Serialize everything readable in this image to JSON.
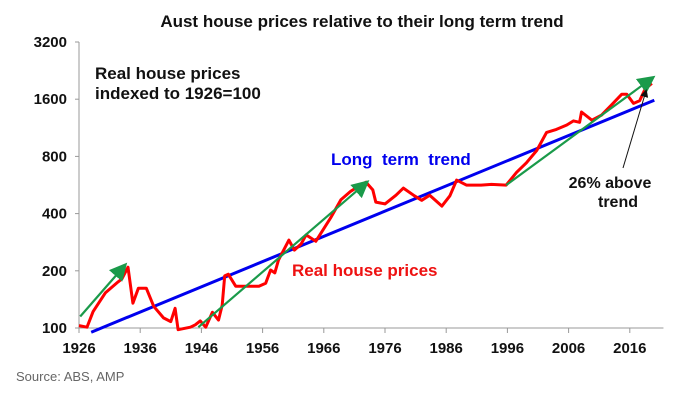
{
  "chart_data": {
    "type": "line",
    "title": "Aust house prices relative to their long term trend",
    "y_scale": "log2",
    "ylim": [
      100,
      3200
    ],
    "y_ticks": [
      "100",
      "200",
      "400",
      "800",
      "1600",
      "3200"
    ],
    "xlim": [
      1926,
      2021
    ],
    "x_ticks": [
      "1926",
      "1936",
      "1946",
      "1956",
      "1966",
      "1976",
      "1986",
      "1996",
      "2006",
      "2016"
    ],
    "grid": false,
    "annotations": {
      "index_note_line1": "Real house prices",
      "index_note_line2": "indexed to 1926=100",
      "trend_label": "Long  term  trend",
      "real_label": "Real house prices",
      "above_line1": "26% above",
      "above_line2": "trend"
    },
    "series": [
      {
        "name": "Real house prices",
        "color": "#ff0000",
        "x": [
          1926,
          1927.3,
          1928.3,
          1930.3,
          1932.4,
          1933,
          1934,
          1934.8,
          1935.7,
          1937,
          1938.2,
          1939.8,
          1941,
          1941.7,
          1942.2,
          1944.2,
          1945,
          1945.8,
          1946.7,
          1947.8,
          1948.8,
          1949.4,
          1949.8,
          1950.4,
          1951.6,
          1955.4,
          1956.5,
          1957.3,
          1958,
          1958.6,
          1960.3,
          1961.2,
          1962.3,
          1963.1,
          1964.7,
          1967.1,
          1968.8,
          1970.4,
          1972,
          1972.9,
          1974,
          1974.5,
          1976,
          1977.8,
          1979,
          1980.8,
          1982,
          1983.3,
          1985.3,
          1986.6,
          1987.7,
          1989.3,
          1991.7,
          1993.4,
          1995.8,
          1997.5,
          1999.1,
          2000.8,
          2002.4,
          2004,
          2005.7,
          2006.8,
          2007.8,
          2008.1,
          2009.8,
          2011.4,
          2013,
          2014.7,
          2015.5,
          2016.6,
          2017.6,
          2018.5,
          2019.6
        ],
        "y": [
          103,
          101,
          122,
          153,
          175,
          181,
          209,
          135,
          162,
          162,
          130,
          113,
          108,
          127,
          98,
          101,
          104,
          109,
          101,
          121,
          110,
          132,
          188,
          192,
          166,
          166,
          172,
          202,
          195,
          228,
          290,
          257,
          277,
          309,
          286,
          379,
          473,
          524,
          565,
          585,
          533,
          460,
          450,
          500,
          545,
          496,
          470,
          500,
          438,
          496,
          600,
          565,
          565,
          570,
          565,
          660,
          740,
          860,
          1070,
          1110,
          1170,
          1230,
          1210,
          1370,
          1240,
          1320,
          1490,
          1700,
          1700,
          1520,
          1570,
          1810,
          1940
        ]
      },
      {
        "name": "Long  term  trend",
        "color": "#0000ee",
        "x": [
          1928,
          2020
        ],
        "y": [
          95,
          1580
        ]
      }
    ],
    "arrows": [
      {
        "color": "#1a9a4a",
        "from": [
          1926.2,
          115
        ],
        "to": [
          1933.4,
          212
        ]
      },
      {
        "color": "#1a9a4a",
        "from": [
          1945.5,
          101
        ],
        "to": [
          1972.9,
          580
        ]
      },
      {
        "color": "#1a9a4a",
        "from": [
          1995.8,
          565
        ],
        "to": [
          2019.6,
          2060
        ]
      }
    ]
  },
  "source": "Source: ABS, AMP"
}
